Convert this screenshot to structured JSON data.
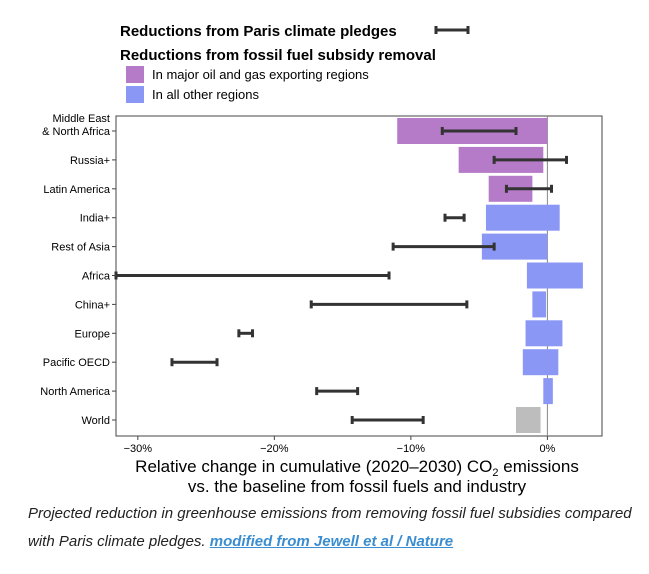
{
  "chart_data": {
    "type": "bar",
    "legend": {
      "pledge_label": "Reductions from Paris climate pledges",
      "subsidy_title": "Reductions from fossil fuel subsidy removal",
      "subsidy_entries": [
        {
          "label": "In major oil and gas exporting regions",
          "color": "#b57ac8"
        },
        {
          "label": "In all other regions",
          "color": "#8a97f5"
        }
      ]
    },
    "categories": [
      "Middle East\n& North Africa",
      "Russia+",
      "Latin America",
      "India+",
      "Rest of Asia",
      "Africa",
      "China+",
      "Europe",
      "Pacific OECD",
      "North America",
      "World"
    ],
    "subsidy_bars": [
      {
        "start": -11.0,
        "end": 0.0,
        "group": "exporter"
      },
      {
        "start": -6.5,
        "end": -0.3,
        "group": "exporter"
      },
      {
        "start": -4.3,
        "end": -1.1,
        "group": "exporter"
      },
      {
        "start": -4.5,
        "end": 0.9,
        "group": "other"
      },
      {
        "start": -4.8,
        "end": 0.0,
        "group": "other"
      },
      {
        "start": -1.5,
        "end": 2.6,
        "group": "other"
      },
      {
        "start": -1.1,
        "end": -0.1,
        "group": "other"
      },
      {
        "start": -1.6,
        "end": 1.1,
        "group": "other"
      },
      {
        "start": -1.8,
        "end": 0.8,
        "group": "other"
      },
      {
        "start": -0.3,
        "end": 0.4,
        "group": "other"
      },
      {
        "start": -2.3,
        "end": -0.5,
        "group": "world"
      }
    ],
    "pledge_ranges": [
      {
        "low": -7.7,
        "high": -2.3
      },
      {
        "low": -3.9,
        "high": 1.4
      },
      {
        "low": -3.0,
        "high": 0.3
      },
      {
        "low": -7.5,
        "high": -6.1
      },
      {
        "low": -11.3,
        "high": -3.9
      },
      {
        "low": -31.6,
        "high": -11.6
      },
      {
        "low": -17.3,
        "high": -5.9
      },
      {
        "low": -22.6,
        "high": -21.6
      },
      {
        "low": -27.5,
        "high": -24.2
      },
      {
        "low": -16.9,
        "high": -13.9
      },
      {
        "low": -14.3,
        "high": -9.1
      }
    ],
    "colors": {
      "exporter": "#b57ac8",
      "other": "#8a97f5",
      "world": "#bdbdbd",
      "pledge": "#333333",
      "zero_line": "#888888"
    },
    "xlim": [
      -31.6,
      4.0
    ],
    "x_ticks": [
      -30,
      -20,
      -10,
      0
    ],
    "x_tick_labels": [
      "−30%",
      "−20%",
      "−10%",
      "0%"
    ],
    "xlabel_line1": "Relative change in cumulative (2020–2030) CO",
    "xlabel_sub": "2",
    "xlabel_emissions": " emissions",
    "xlabel_line2": "vs. the baseline from fossil fuels and industry"
  },
  "caption": {
    "text": "Projected reduction in greenhouse emissions from removing fossil fuel subsidies compared with Paris climate pledges.",
    "link_text": "modified from Jewell et al / Nature"
  }
}
